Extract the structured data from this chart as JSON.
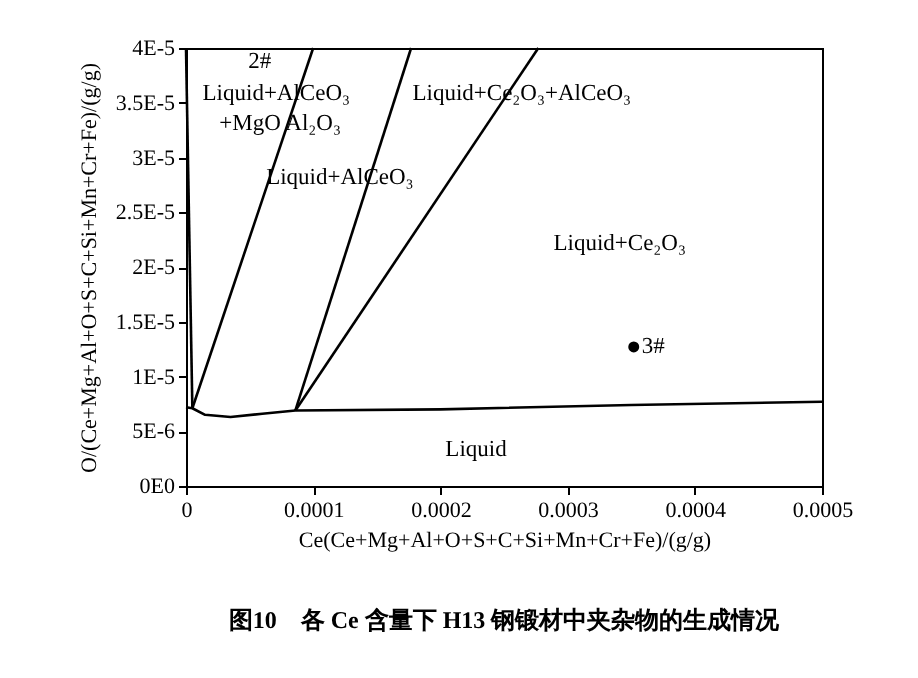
{
  "chart_data": {
    "type": "line",
    "title": "图10　各 Ce 含量下 H13 钢锻材中夹杂物的生成情况",
    "xlabel": "Ce(Ce+Mg+Al+O+S+C+Si+Mn+Cr+Fe)/(g/g)",
    "ylabel": "O/(Ce+Mg+Al+O+S+C+Si+Mn+Cr+Fe)/(g/g)",
    "xlim": [
      0,
      0.0005
    ],
    "xticks": [
      0,
      0.0001,
      0.0002,
      0.0003,
      0.0004,
      0.0005
    ],
    "ylim": [
      0,
      4e-05
    ],
    "yticks": [
      {
        "value": 0,
        "label": "0E0"
      },
      {
        "value": 5e-06,
        "label": "5E-6"
      },
      {
        "value": 1e-05,
        "label": "1E-5"
      },
      {
        "value": 1.5e-05,
        "label": "1.5E-5"
      },
      {
        "value": 2e-05,
        "label": "2E-5"
      },
      {
        "value": 2.5e-05,
        "label": "2.5E-5"
      },
      {
        "value": 3e-05,
        "label": "3E-5"
      },
      {
        "value": 3.5e-05,
        "label": "3.5E-5"
      },
      {
        "value": 4e-05,
        "label": "4E-5"
      }
    ],
    "grid": false,
    "marker": "none",
    "line_style": "solid",
    "series": [
      {
        "color": "#000000",
        "x": [
          0,
          5e-06
        ],
        "values": [
          4e-05,
          7.1e-06
        ]
      },
      {
        "color": "#000000",
        "x": [
          5e-06,
          0.0001
        ],
        "values": [
          7.1e-06,
          4e-05
        ]
      },
      {
        "color": "#000000",
        "x": [
          8.6e-05,
          0.000177
        ],
        "values": [
          6.9e-06,
          4e-05
        ]
      },
      {
        "color": "#000000",
        "x": [
          8.6e-05,
          0.000277
        ],
        "values": [
          6.9e-06,
          4e-05
        ]
      },
      {
        "color": "#000000",
        "x": [
          0,
          5e-06,
          1.5e-05,
          3.5e-05,
          6e-05,
          8.6e-05,
          0.0002,
          0.00035,
          0.0005
        ],
        "values": [
          7.2e-06,
          7.1e-06,
          6.5e-06,
          6.3e-06,
          6.6e-06,
          6.9e-06,
          7e-06,
          7.4e-06,
          7.7e-06
        ]
      },
      {
        "type": "scatter",
        "marker": "circle",
        "color": "#000000",
        "x": [
          0.000352
        ],
        "values": [
          1.27e-05
        ]
      }
    ],
    "annotations": [
      "2#",
      "Liquid+AlCeO₃",
      "+MgO Al₂O₃",
      "Liquid+Ce₂O₃+AlCeO₃",
      "Liquid+AlCeO₃",
      "Liquid+Ce₂O₃",
      "Liquid",
      {
        "text": "3#",
        "x": 0.000352,
        "y": 1.27e-05
      }
    ]
  }
}
